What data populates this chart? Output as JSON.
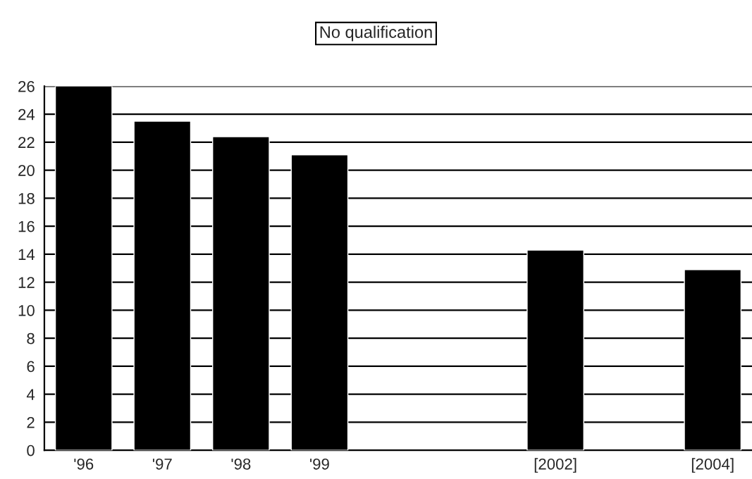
{
  "chart_data": {
    "type": "bar",
    "title": "No qualification",
    "categories": [
      "'96",
      "'97",
      "'98",
      "'99",
      null,
      null,
      "[2002]",
      null,
      "[2004]"
    ],
    "values": [
      26,
      23.5,
      22.4,
      21.1,
      null,
      null,
      14.3,
      null,
      12.9
    ],
    "color": "#000000",
    "ylim": [
      0,
      26
    ],
    "yticks": [
      0,
      2,
      4,
      6,
      8,
      10,
      12,
      14,
      16,
      18,
      20,
      22,
      24,
      26
    ],
    "grid": "y"
  }
}
